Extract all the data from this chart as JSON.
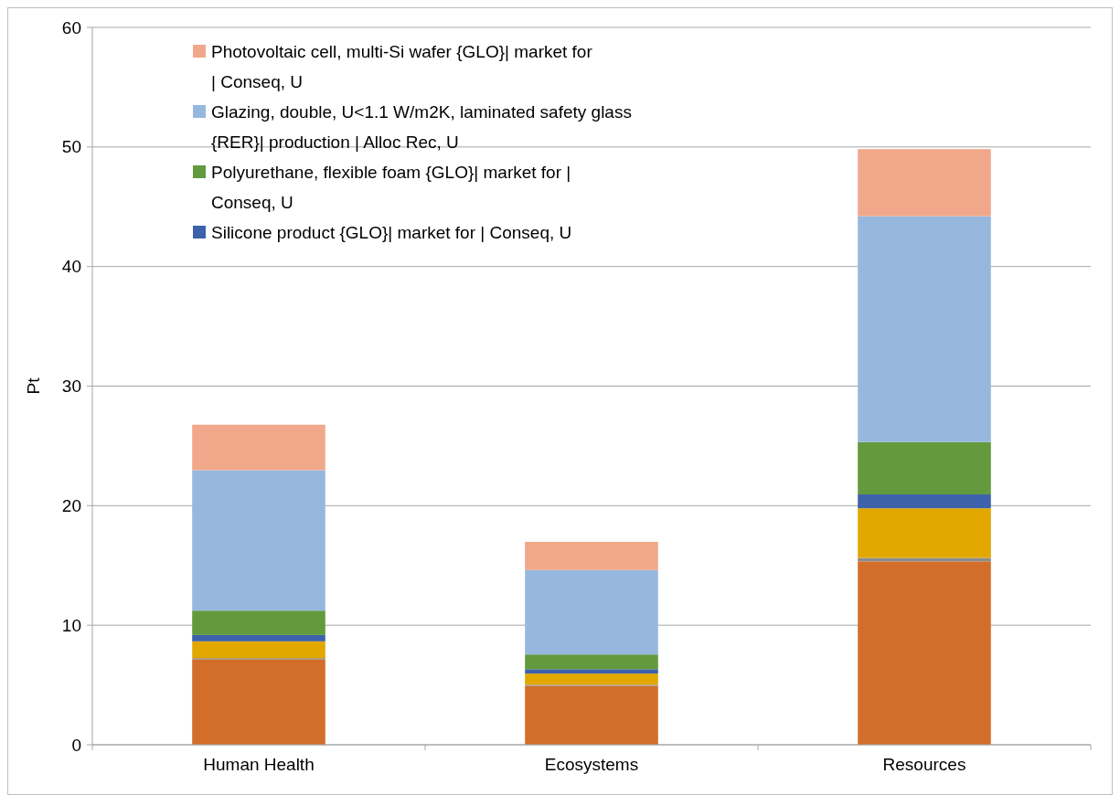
{
  "chart_data": {
    "type": "bar",
    "stacked": true,
    "ylabel": "Pt",
    "categories": [
      "Human Health",
      "Ecosystems",
      "Resources"
    ],
    "series": [
      {
        "color": "#d36e2a",
        "values": [
          7.15,
          4.92,
          15.34
        ]
      },
      {
        "color": "#8c8c8c",
        "values": [
          0.1,
          0.1,
          0.29
        ]
      },
      {
        "color": "#e2a800",
        "values": [
          1.4,
          0.93,
          4.15
        ]
      },
      {
        "name": "Silicone product {GLO}| market for | Conseq, U",
        "color": "#3c62ab",
        "values": [
          0.53,
          0.37,
          1.16
        ]
      },
      {
        "name": "Polyurethane, flexible foam {GLO}| market for | Conseq, U",
        "color": "#639a3e",
        "values": [
          2.04,
          1.23,
          4.38
        ]
      },
      {
        "name": "Glazing, double, U<1.1 W/m2K, laminated safety glass {RER}| production | Alloc Rec, U",
        "color": "#97b8de",
        "values": [
          11.75,
          7.06,
          18.9
        ]
      },
      {
        "name": "Photovoltaic cell, multi-Si wafer {GLO}| market for | Conseq, U",
        "color": "#f1a88a",
        "values": [
          3.8,
          2.36,
          5.6
        ]
      }
    ],
    "ylim": [
      0,
      60
    ],
    "yticks": [
      0,
      10,
      20,
      30,
      40,
      50,
      60
    ],
    "grid": "y",
    "legend": "top left"
  }
}
